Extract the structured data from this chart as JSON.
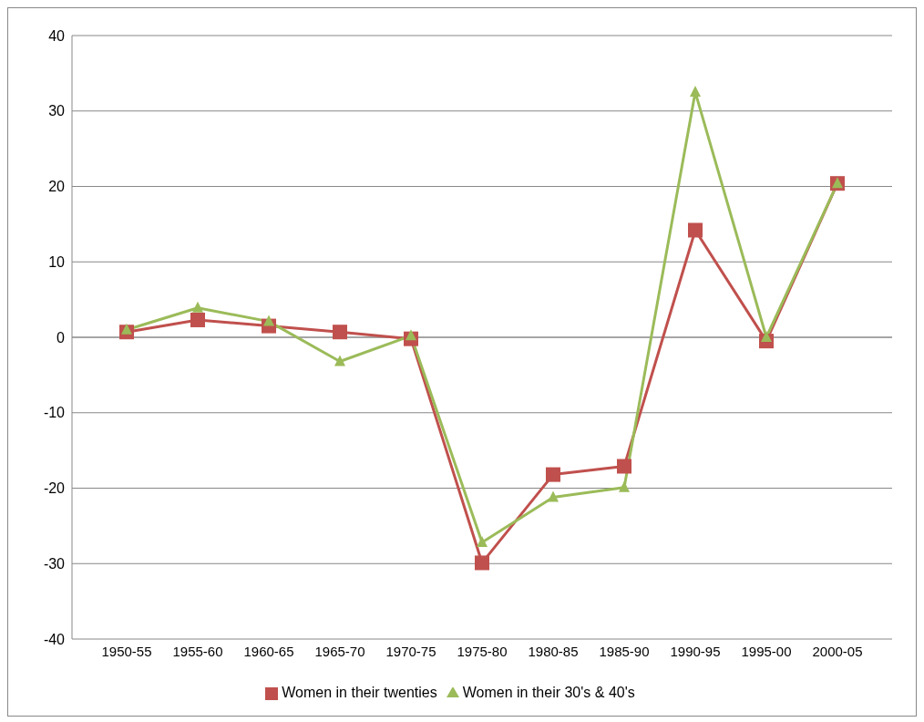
{
  "chart_data": {
    "type": "line",
    "categories": [
      "1950-55",
      "1955-60",
      "1960-65",
      "1965-70",
      "1970-75",
      "1975-80",
      "1980-85",
      "1985-90",
      "1990-95",
      "1995-00",
      "2000-05"
    ],
    "series": [
      {
        "name": "Women in their twenties",
        "color": "#c0504d",
        "marker": "square",
        "values": [
          0.7,
          2.3,
          1.5,
          0.7,
          -0.2,
          -29.9,
          -18.2,
          -17.1,
          14.2,
          -0.5,
          20.4
        ]
      },
      {
        "name": "Women in their 30's & 40's",
        "color": "#9bbb59",
        "marker": "triangle",
        "values": [
          1.0,
          3.9,
          2.1,
          -3.2,
          0.2,
          -27.2,
          -21.2,
          -19.9,
          32.5,
          0,
          20.4
        ]
      }
    ],
    "ylim": [
      -40,
      40
    ],
    "yticks": [
      -40,
      -30,
      -20,
      -10,
      0,
      10,
      20,
      30,
      40
    ],
    "grid": "y",
    "legend": "bottom"
  }
}
